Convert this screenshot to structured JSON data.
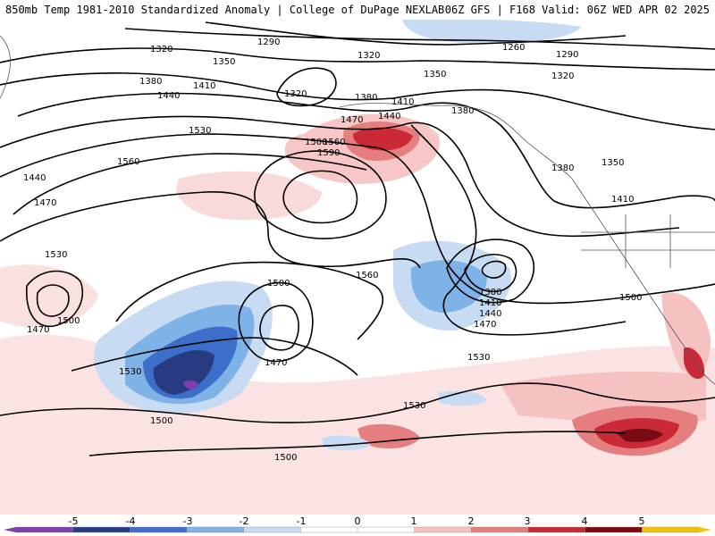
{
  "header": {
    "title_left": "850mb Temp 1981-2010 Standardized Anomaly | College of DuPage NEXLAB",
    "title_right": "06Z GFS | F168 Valid: 06Z WED APR 02 2025"
  },
  "colorbar": {
    "tick_labels": [
      "-5",
      "-4",
      "-3",
      "-2",
      "-1",
      "0",
      "1",
      "2",
      "3",
      "4",
      "5"
    ],
    "colors": [
      "#7b3fb0",
      "#283a80",
      "#3d6ec9",
      "#7fb2e6",
      "#c7dcf3",
      "#ffffff",
      "#ffffff",
      "#f6c1c1",
      "#e57f7f",
      "#c92a35",
      "#7a0b12",
      "#f2c300"
    ]
  },
  "contour_labels": [
    "1320",
    "1290",
    "1260",
    "1290",
    "1320",
    "1350",
    "1320",
    "1380",
    "1410",
    "1440",
    "1320",
    "1350",
    "1380",
    "1410",
    "1380",
    "1440",
    "1470",
    "1530",
    "1560",
    "1590",
    "1500",
    "1440",
    "1560",
    "1470",
    "1380",
    "1350",
    "1410",
    "1530",
    "1500",
    "1470",
    "1500",
    "1560",
    "1380",
    "1410",
    "1440",
    "1470",
    "1500",
    "1470",
    "1530",
    "1500",
    "1530",
    "1530",
    "1500"
  ]
}
